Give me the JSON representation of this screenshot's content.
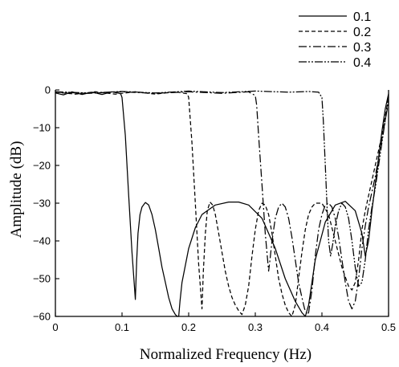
{
  "chart_data": {
    "type": "line",
    "title": "",
    "xlabel": "Normalized Frequency (Hz)",
    "ylabel": "Amplitude (dB)",
    "xlim": [
      0,
      0.5
    ],
    "ylim": [
      -60,
      0
    ],
    "xticks": [
      0,
      0.1,
      0.2,
      0.3,
      0.4,
      0.5
    ],
    "xtick_labels": [
      "0",
      "0.1",
      "0.2",
      "0.3",
      "0.4",
      "0.5"
    ],
    "yticks": [
      0,
      -10,
      -20,
      -30,
      -40,
      -50,
      -60
    ],
    "ytick_labels": [
      "0",
      "−10",
      "−20",
      "−30",
      "−40",
      "−50",
      "−60"
    ],
    "grid": false,
    "legend_position": "top-right",
    "line_color": "#000000",
    "series": [
      {
        "name": "0.1",
        "dash": "solid",
        "x": [
          0,
          0.012,
          0.025,
          0.04,
          0.055,
          0.07,
          0.085,
          0.098,
          0.1,
          0.105,
          0.11,
          0.115,
          0.12,
          0.122,
          0.124,
          0.127,
          0.13,
          0.135,
          0.14,
          0.145,
          0.15,
          0.155,
          0.16,
          0.165,
          0.17,
          0.175,
          0.18,
          0.183,
          0.185,
          0.187,
          0.19,
          0.2,
          0.21,
          0.22,
          0.24,
          0.26,
          0.275,
          0.29,
          0.31,
          0.33,
          0.345,
          0.36,
          0.37,
          0.375,
          0.38,
          0.39,
          0.405,
          0.42,
          0.435,
          0.45,
          0.46,
          0.465,
          0.47,
          0.475,
          0.48,
          0.485,
          0.49,
          0.495,
          0.5
        ],
        "y": [
          -0.8,
          -1.3,
          -0.5,
          -1.2,
          -0.6,
          -1.2,
          -0.5,
          -1.0,
          -2.0,
          -12,
          -28,
          -43,
          -55.5,
          -45,
          -38,
          -33,
          -31,
          -29.8,
          -30.5,
          -33,
          -37,
          -42,
          -47,
          -51,
          -55,
          -58,
          -59.5,
          -60,
          -60,
          -56,
          -51,
          -42,
          -36.5,
          -33,
          -30.5,
          -29.7,
          -29.7,
          -30.5,
          -34,
          -42,
          -50,
          -56,
          -59,
          -60,
          -57,
          -45,
          -35,
          -30.5,
          -29.5,
          -32,
          -38,
          -44,
          -40,
          -32,
          -25,
          -18,
          -11,
          -5,
          -1
        ]
      },
      {
        "name": "0.2",
        "dash": "5,3",
        "x": [
          0,
          0.03,
          0.06,
          0.09,
          0.12,
          0.15,
          0.18,
          0.198,
          0.2,
          0.205,
          0.21,
          0.215,
          0.22,
          0.222,
          0.225,
          0.228,
          0.232,
          0.236,
          0.24,
          0.245,
          0.25,
          0.255,
          0.26,
          0.265,
          0.27,
          0.275,
          0.28,
          0.285,
          0.29,
          0.295,
          0.3,
          0.305,
          0.31,
          0.315,
          0.32,
          0.325,
          0.33,
          0.335,
          0.34,
          0.345,
          0.35,
          0.355,
          0.36,
          0.365,
          0.37,
          0.375,
          0.38,
          0.385,
          0.39,
          0.4,
          0.41,
          0.42,
          0.43,
          0.44,
          0.445,
          0.45,
          0.455,
          0.46,
          0.465,
          0.47,
          0.475,
          0.48,
          0.485,
          0.49,
          0.495,
          0.5
        ],
        "y": [
          -0.6,
          -1.1,
          -0.5,
          -1.1,
          -0.5,
          -1.1,
          -0.5,
          -1.0,
          -2.0,
          -14,
          -30,
          -46,
          -58,
          -48,
          -38,
          -32,
          -29.7,
          -30.5,
          -33,
          -38,
          -43,
          -48,
          -52,
          -55,
          -57,
          -58.5,
          -59.5,
          -57,
          -52,
          -44,
          -37,
          -32,
          -30,
          -30.5,
          -33,
          -38,
          -44,
          -50,
          -54,
          -57,
          -59,
          -60,
          -57,
          -50,
          -43,
          -37,
          -33,
          -31,
          -30,
          -30,
          -33,
          -40,
          -47,
          -52,
          -53,
          -51,
          -45,
          -37,
          -32,
          -28,
          -24,
          -20,
          -16,
          -12,
          -7,
          -2
        ]
      },
      {
        "name": "0.3",
        "dash": "10,3,2,3",
        "x": [
          0,
          0.05,
          0.1,
          0.15,
          0.2,
          0.25,
          0.29,
          0.3,
          0.302,
          0.305,
          0.31,
          0.315,
          0.32,
          0.322,
          0.325,
          0.33,
          0.335,
          0.34,
          0.345,
          0.35,
          0.355,
          0.36,
          0.365,
          0.37,
          0.374,
          0.378,
          0.38,
          0.385,
          0.39,
          0.395,
          0.4,
          0.405,
          0.41,
          0.415,
          0.42,
          0.425,
          0.43,
          0.435,
          0.44,
          0.445,
          0.45,
          0.455,
          0.46,
          0.465,
          0.47,
          0.475,
          0.48,
          0.485,
          0.49,
          0.495,
          0.5
        ],
        "y": [
          -0.6,
          -0.9,
          -0.5,
          -0.9,
          -0.5,
          -0.9,
          -0.5,
          -1.5,
          -4,
          -12,
          -25,
          -38,
          -48,
          -45,
          -40,
          -34,
          -31,
          -30,
          -31,
          -34,
          -39,
          -45,
          -51,
          -55,
          -58,
          -59.5,
          -59,
          -53,
          -44,
          -37,
          -33,
          -30.5,
          -30,
          -31,
          -34,
          -39,
          -45,
          -51,
          -56,
          -58,
          -56,
          -50,
          -42,
          -36,
          -31,
          -27,
          -23,
          -18,
          -13,
          -8,
          -3
        ]
      },
      {
        "name": "0.4",
        "dash": "10,2,2,2,2,2",
        "x": [
          0,
          0.05,
          0.1,
          0.15,
          0.2,
          0.25,
          0.3,
          0.35,
          0.38,
          0.395,
          0.4,
          0.402,
          0.405,
          0.408,
          0.41,
          0.413,
          0.416,
          0.42,
          0.425,
          0.43,
          0.435,
          0.44,
          0.445,
          0.45,
          0.455,
          0.46,
          0.465,
          0.47,
          0.475,
          0.48,
          0.485,
          0.49,
          0.495,
          0.5
        ],
        "y": [
          -0.5,
          -0.8,
          -0.4,
          -0.8,
          -0.3,
          -0.7,
          -0.3,
          -0.6,
          -0.4,
          -0.6,
          -2,
          -8,
          -20,
          -32,
          -40,
          -44,
          -41,
          -36,
          -32,
          -30,
          -31,
          -34,
          -40,
          -47,
          -52,
          -51,
          -45,
          -37,
          -31,
          -26,
          -20,
          -14,
          -8,
          -2
        ]
      }
    ]
  }
}
